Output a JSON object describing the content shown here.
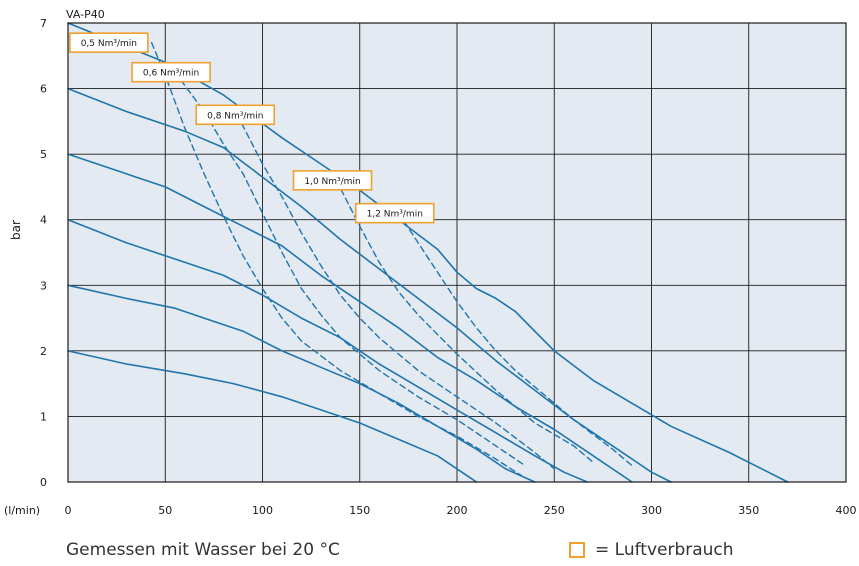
{
  "chart_data": {
    "type": "line",
    "title": "VA-P40",
    "xlabel": "(l/min)",
    "ylabel": "bar",
    "xlim": [
      0,
      400
    ],
    "ylim": [
      0,
      7
    ],
    "xticks": [
      0,
      50,
      100,
      150,
      200,
      250,
      300,
      350,
      400
    ],
    "yticks": [
      0,
      1,
      2,
      3,
      4,
      5,
      6,
      7
    ],
    "grid": true,
    "colors": {
      "background": "#e4eaf1",
      "line": "#1f75ad",
      "annotation": "#f0a030",
      "grid": "#1a1a1a"
    },
    "series": [
      {
        "style": "solid",
        "x": [
          0,
          30,
          60,
          85,
          110,
          130,
          150,
          170,
          190,
          205,
          210
        ],
        "y": [
          2.0,
          1.8,
          1.65,
          1.5,
          1.3,
          1.1,
          0.9,
          0.65,
          0.4,
          0.1,
          0.0
        ]
      },
      {
        "style": "solid",
        "x": [
          0,
          30,
          55,
          70,
          90,
          110,
          130,
          150,
          170,
          190,
          210,
          225,
          240
        ],
        "y": [
          3.0,
          2.8,
          2.65,
          2.5,
          2.3,
          2.0,
          1.75,
          1.5,
          1.2,
          0.85,
          0.5,
          0.2,
          0.0
        ]
      },
      {
        "style": "solid",
        "x": [
          0,
          30,
          60,
          80,
          100,
          120,
          140,
          160,
          180,
          200,
          220,
          240,
          255,
          267
        ],
        "y": [
          4.0,
          3.65,
          3.35,
          3.15,
          2.85,
          2.5,
          2.2,
          1.8,
          1.45,
          1.1,
          0.75,
          0.4,
          0.15,
          0.0
        ]
      },
      {
        "style": "solid",
        "x": [
          0,
          30,
          50,
          70,
          90,
          110,
          130,
          150,
          170,
          190,
          210,
          230,
          250,
          270,
          290
        ],
        "y": [
          5.0,
          4.7,
          4.5,
          4.2,
          3.9,
          3.6,
          3.15,
          2.75,
          2.35,
          1.9,
          1.55,
          1.15,
          0.8,
          0.4,
          0.0
        ]
      },
      {
        "style": "solid",
        "x": [
          0,
          30,
          60,
          80,
          100,
          120,
          140,
          160,
          180,
          200,
          220,
          240,
          260,
          280,
          300,
          310
        ],
        "y": [
          6.0,
          5.65,
          5.35,
          5.1,
          4.65,
          4.2,
          3.7,
          3.25,
          2.8,
          2.35,
          1.85,
          1.4,
          0.95,
          0.55,
          0.15,
          0.0
        ]
      },
      {
        "style": "solid",
        "x": [
          0,
          50,
          80,
          110,
          130,
          150,
          170,
          190,
          200,
          210,
          220,
          230,
          250,
          270,
          290,
          310,
          340,
          370
        ],
        "y": [
          7.0,
          6.4,
          5.9,
          5.25,
          4.85,
          4.45,
          4.0,
          3.55,
          3.2,
          2.95,
          2.8,
          2.6,
          2.0,
          1.55,
          1.2,
          0.85,
          0.45,
          0.0
        ]
      },
      {
        "style": "dashed",
        "x": [
          43,
          50,
          60,
          70,
          80,
          90,
          100,
          110,
          120,
          140,
          160,
          180,
          200,
          220,
          233
        ],
        "y": [
          6.7,
          6.2,
          5.4,
          4.7,
          4.05,
          3.45,
          2.95,
          2.5,
          2.15,
          1.7,
          1.35,
          1.0,
          0.7,
          0.35,
          0.1
        ]
      },
      {
        "style": "dashed",
        "x": [
          55,
          70,
          80,
          90,
          100,
          110,
          120,
          130,
          140,
          160,
          180,
          200,
          220,
          235
        ],
        "y": [
          6.25,
          5.65,
          5.15,
          4.7,
          4.1,
          3.5,
          2.95,
          2.55,
          2.2,
          1.7,
          1.3,
          0.95,
          0.55,
          0.25
        ]
      },
      {
        "style": "dashed",
        "x": [
          87,
          100,
          110,
          120,
          130,
          140,
          150,
          160,
          170,
          180,
          200,
          220,
          240,
          250
        ],
        "y": [
          5.6,
          4.85,
          4.35,
          3.8,
          3.3,
          2.85,
          2.5,
          2.2,
          1.95,
          1.7,
          1.3,
          0.9,
          0.45,
          0.2
        ]
      },
      {
        "style": "dashed",
        "x": [
          138,
          150,
          160,
          170,
          180,
          190,
          200,
          220,
          240,
          260,
          270
        ],
        "y": [
          4.6,
          3.9,
          3.35,
          2.9,
          2.55,
          2.25,
          1.95,
          1.4,
          0.9,
          0.55,
          0.3
        ]
      },
      {
        "style": "dashed",
        "x": [
          170,
          180,
          190,
          200,
          210,
          220,
          230,
          240,
          250,
          260,
          280,
          290
        ],
        "y": [
          4.1,
          3.65,
          3.2,
          2.75,
          2.35,
          2.0,
          1.7,
          1.45,
          1.2,
          0.95,
          0.5,
          0.25
        ]
      }
    ],
    "annotations": [
      {
        "label": "0,5 Nm³/min",
        "x": 21,
        "y": 6.7
      },
      {
        "label": "0,6 Nm³/min",
        "x": 53,
        "y": 6.25
      },
      {
        "label": "0,8 Nm³/min",
        "x": 86,
        "y": 5.6
      },
      {
        "label": "1,0 Nm³/min",
        "x": 136,
        "y": 4.6
      },
      {
        "label": "1,2 Nm³/min",
        "x": 168,
        "y": 4.1
      }
    ]
  },
  "footer": {
    "measurement_note": "Gemessen mit Wasser bei 20 °C",
    "legend_label": "=  Luftverbrauch"
  }
}
